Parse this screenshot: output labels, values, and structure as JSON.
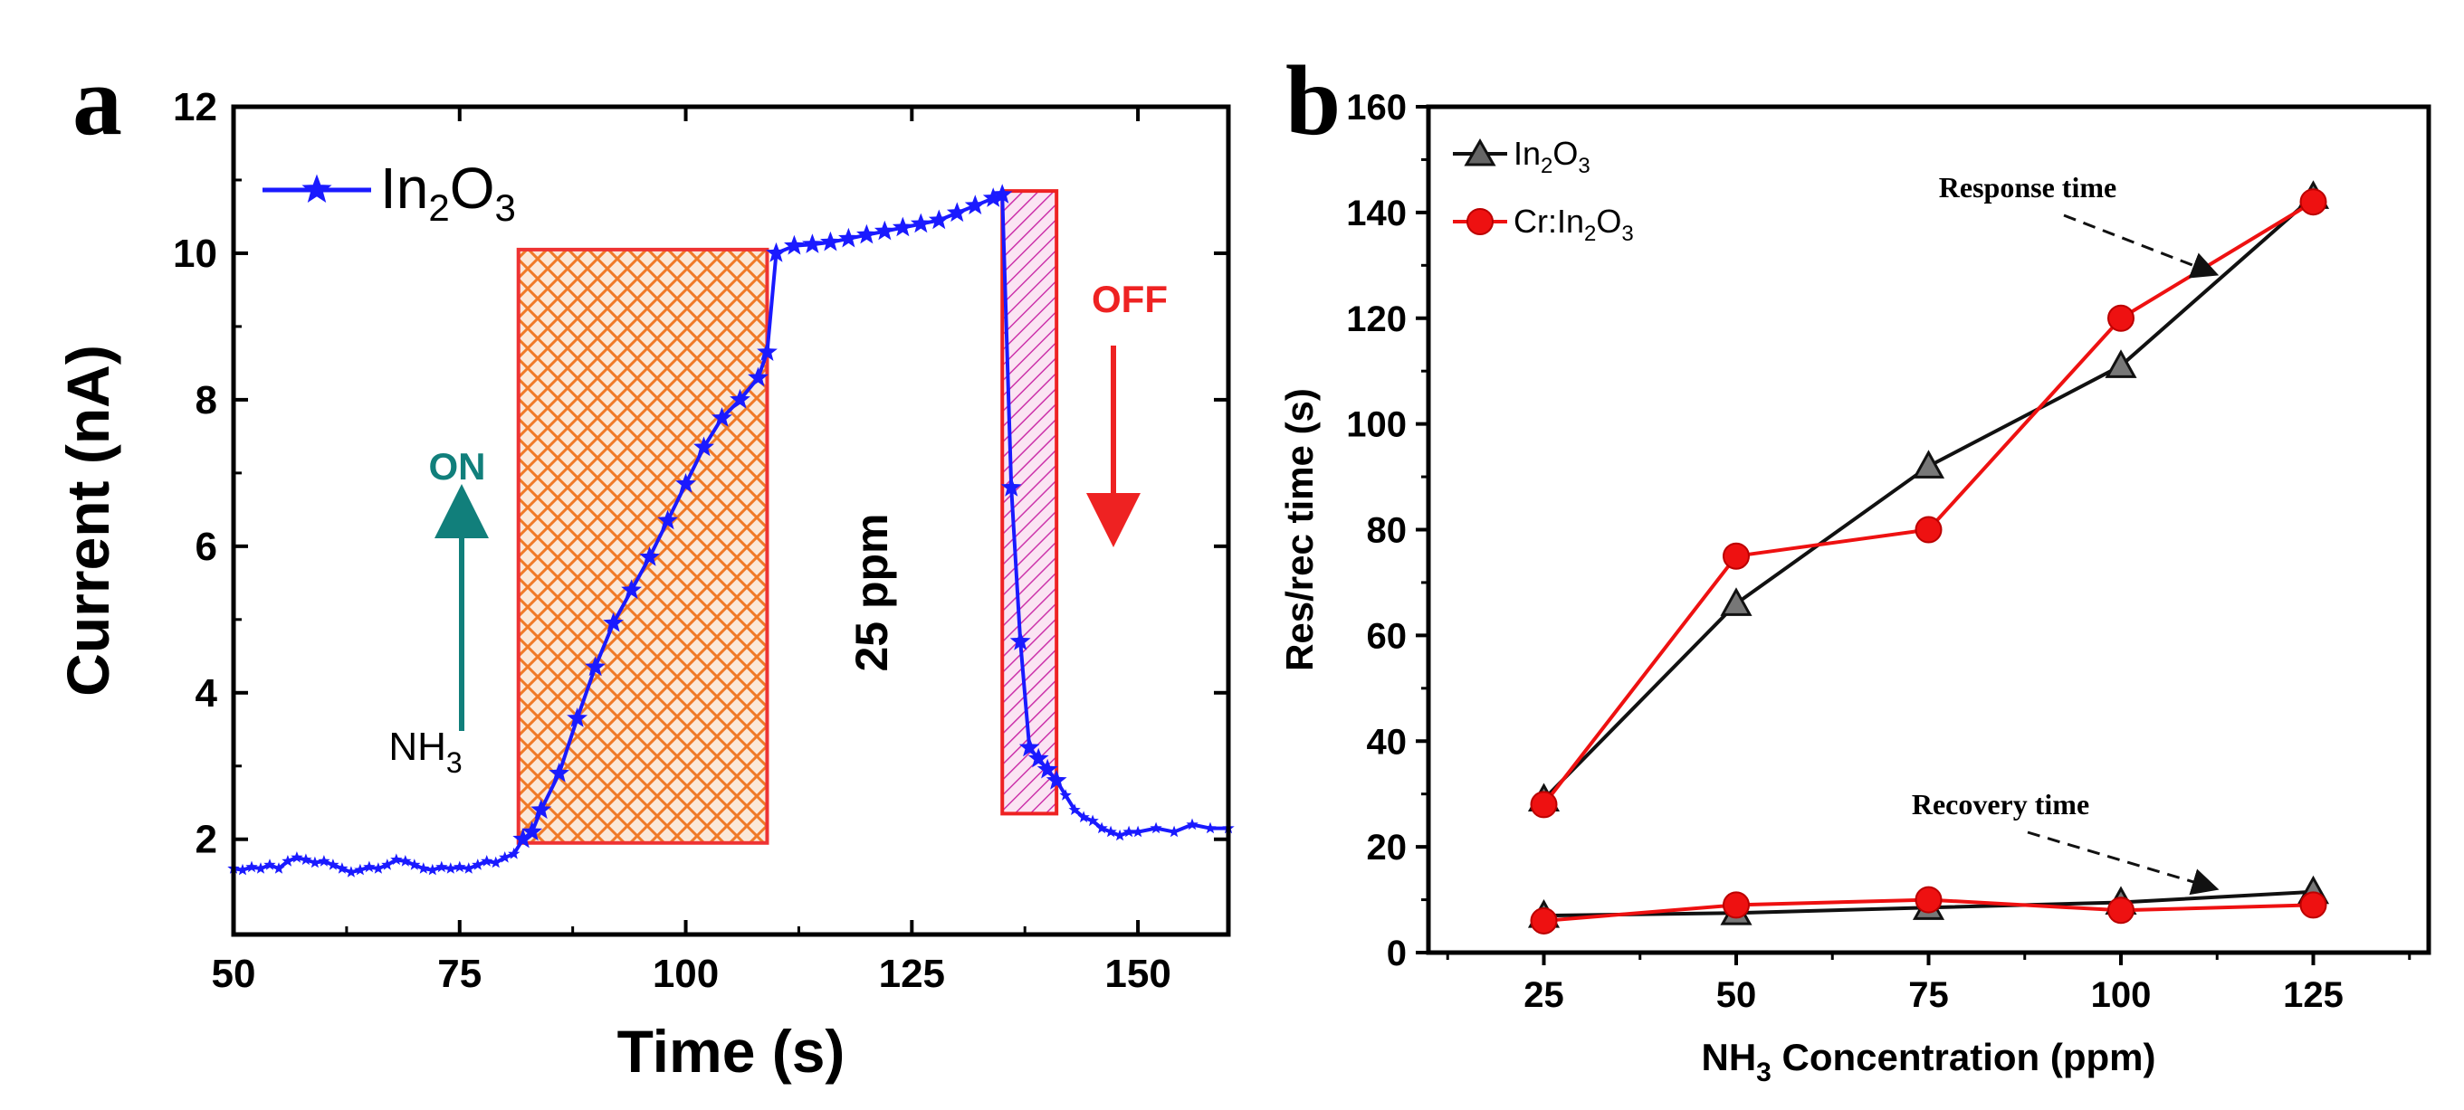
{
  "figure": {
    "panel_a_letter": "a",
    "panel_b_letter": "b"
  },
  "chart_data": [
    {
      "type": "line",
      "panel": "a",
      "xlabel": "Time (s)",
      "ylabel": "Current (nA)",
      "xlim": [
        50,
        160
      ],
      "ylim": [
        0.7,
        12
      ],
      "xticks": [
        50,
        75,
        100,
        125,
        150
      ],
      "yticks": [
        2,
        4,
        6,
        8,
        10,
        12
      ],
      "series": [
        {
          "name": "In2O3",
          "legend": {
            "main": "In",
            "sub1": "2",
            "mid": "O",
            "sub2": "3"
          },
          "color": "#1a1aff",
          "marker": "star",
          "x": [
            50,
            51,
            52,
            53,
            54,
            55,
            56,
            57,
            58,
            59,
            60,
            61,
            62,
            63,
            64,
            65,
            66,
            67,
            68,
            69,
            70,
            71,
            72,
            73,
            74,
            75,
            76,
            77,
            78,
            79,
            80,
            81,
            82,
            83,
            84,
            86,
            88,
            90,
            92,
            94,
            96,
            98,
            100,
            102,
            104,
            106,
            108,
            109,
            110,
            112,
            114,
            116,
            118,
            120,
            122,
            124,
            126,
            128,
            130,
            132,
            134,
            135,
            136,
            137,
            138,
            139,
            140,
            141,
            142,
            143,
            144,
            145,
            146,
            147,
            148,
            149,
            150,
            152,
            154,
            156,
            158,
            160
          ],
          "y": [
            1.6,
            1.58,
            1.62,
            1.6,
            1.65,
            1.6,
            1.7,
            1.75,
            1.72,
            1.68,
            1.7,
            1.65,
            1.6,
            1.55,
            1.58,
            1.62,
            1.6,
            1.65,
            1.72,
            1.7,
            1.65,
            1.6,
            1.58,
            1.62,
            1.6,
            1.62,
            1.6,
            1.65,
            1.7,
            1.68,
            1.75,
            1.8,
            2.0,
            2.1,
            2.4,
            2.9,
            3.65,
            4.35,
            4.95,
            5.4,
            5.85,
            6.35,
            6.85,
            7.35,
            7.75,
            8.0,
            8.3,
            8.65,
            10.0,
            10.1,
            10.12,
            10.15,
            10.2,
            10.25,
            10.3,
            10.35,
            10.4,
            10.45,
            10.55,
            10.65,
            10.75,
            10.8,
            6.8,
            4.7,
            3.25,
            3.1,
            2.95,
            2.8,
            2.6,
            2.4,
            2.3,
            2.25,
            2.15,
            2.1,
            2.05,
            2.1,
            2.1,
            2.15,
            2.1,
            2.2,
            2.15,
            2.15
          ]
        }
      ],
      "annotations": {
        "on_label": "ON",
        "on_color": "#117f7b",
        "off_label": "OFF",
        "off_color": "#ee2222",
        "gas_main": "NH",
        "gas_sub": "3",
        "ppm_label": "25 ppm",
        "response_region": {
          "x": [
            81.5,
            109
          ],
          "y": [
            1.95,
            10.05
          ],
          "color": "#f07a28"
        },
        "recovery_region": {
          "x": [
            135,
            141
          ],
          "y": [
            2.35,
            10.85
          ],
          "color": "#cc33aa"
        }
      }
    },
    {
      "type": "line",
      "panel": "b",
      "xlabel": {
        "pre": "NH",
        "sub": "3",
        "post": " Concentration (ppm)"
      },
      "ylabel": "Res/rec time (s)",
      "xlim": [
        10,
        140
      ],
      "ylim": [
        0,
        160
      ],
      "xticks": [
        25,
        50,
        75,
        100,
        125
      ],
      "yticks": [
        0,
        20,
        40,
        60,
        80,
        100,
        120,
        140,
        160
      ],
      "x": [
        25,
        50,
        75,
        100,
        125
      ],
      "series": [
        {
          "name": "In2O3 response",
          "legend": {
            "main": "In",
            "sub1": "2",
            "mid": "O",
            "sub2": "3"
          },
          "color": "#111111",
          "marker": "triangle",
          "values": [
            29,
            66,
            92,
            111,
            143
          ]
        },
        {
          "name": "Cr:In2O3 response",
          "legend": {
            "main": "Cr:In",
            "sub1": "2",
            "mid": "O",
            "sub2": "3"
          },
          "color": "#ee1111",
          "marker": "circle",
          "values": [
            28,
            75,
            80,
            120,
            142
          ]
        },
        {
          "name": "In2O3 recovery",
          "color": "#111111",
          "marker": "triangle",
          "values": [
            7,
            7.5,
            8.5,
            9.5,
            11.5
          ]
        },
        {
          "name": "Cr:In2O3 recovery",
          "color": "#ee1111",
          "marker": "circle",
          "values": [
            6,
            9,
            10,
            8,
            9
          ]
        }
      ],
      "annotations": {
        "response_label": "Response time",
        "recovery_label": "Recovery time"
      }
    }
  ]
}
